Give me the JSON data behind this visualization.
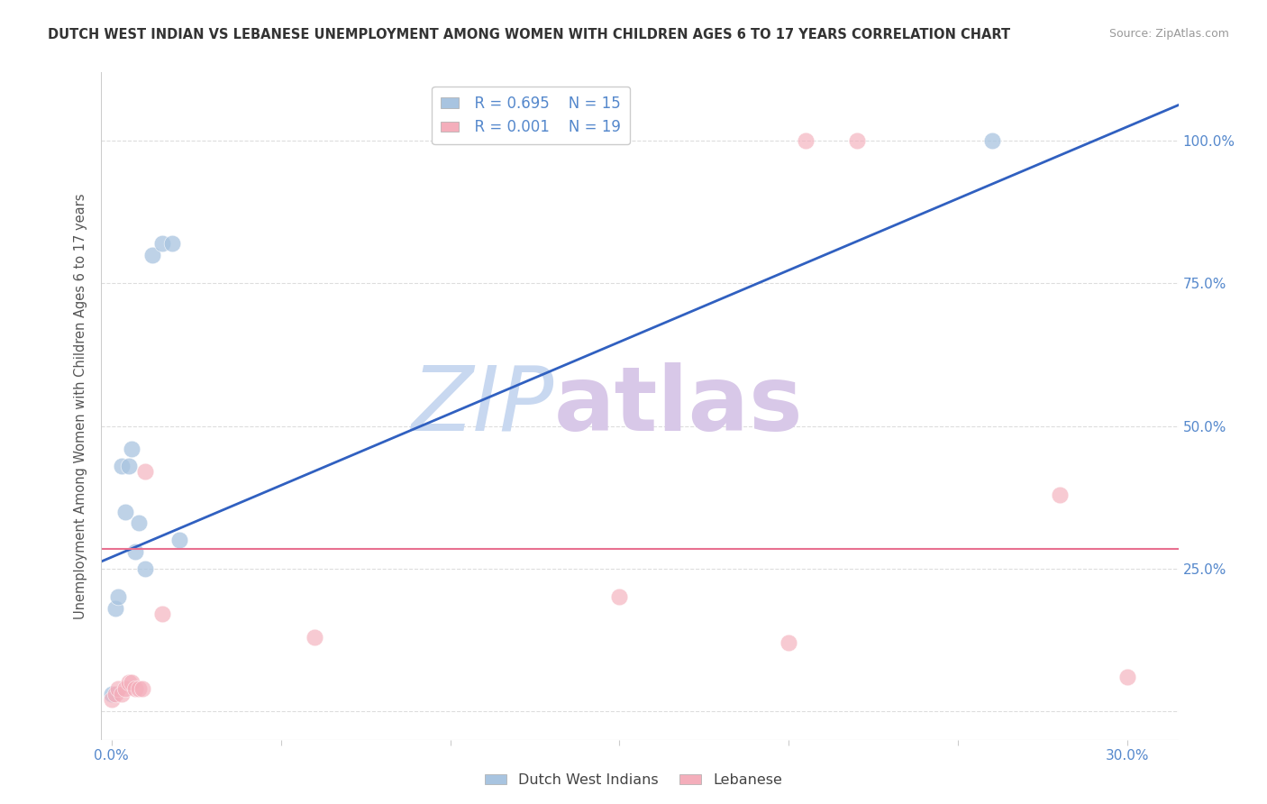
{
  "title": "DUTCH WEST INDIAN VS LEBANESE UNEMPLOYMENT AMONG WOMEN WITH CHILDREN AGES 6 TO 17 YEARS CORRELATION CHART",
  "source": "Source: ZipAtlas.com",
  "ylabel": "Unemployment Among Women with Children Ages 6 to 17 years",
  "yticks": [
    0.0,
    0.25,
    0.5,
    0.75,
    1.0
  ],
  "ytick_labels": [
    "",
    "25.0%",
    "50.0%",
    "75.0%",
    "100.0%"
  ],
  "xticks": [
    0.0,
    0.05,
    0.1,
    0.15,
    0.2,
    0.25,
    0.3
  ],
  "xtick_labels_visible": [
    "0.0%",
    "",
    "",
    "",
    "",
    "",
    "30.0%"
  ],
  "xlim": [
    -0.003,
    0.315
  ],
  "ylim": [
    -0.05,
    1.12
  ],
  "legend_r1": "R = 0.695",
  "legend_n1": "N = 15",
  "legend_r2": "R = 0.001",
  "legend_n2": "N = 19",
  "blue_color": "#A8C4E0",
  "pink_color": "#F4AEBB",
  "blue_line_color": "#3060C0",
  "pink_line_color": "#E87090",
  "dutch_west_indian_x": [
    0.0,
    0.001,
    0.002,
    0.003,
    0.004,
    0.005,
    0.006,
    0.007,
    0.008,
    0.01,
    0.012,
    0.015,
    0.018,
    0.02,
    0.26
  ],
  "dutch_west_indian_y": [
    0.03,
    0.18,
    0.2,
    0.43,
    0.35,
    0.43,
    0.46,
    0.28,
    0.33,
    0.25,
    0.8,
    0.82,
    0.82,
    0.3,
    1.0
  ],
  "lebanese_x": [
    0.0,
    0.001,
    0.002,
    0.003,
    0.004,
    0.005,
    0.006,
    0.007,
    0.008,
    0.009,
    0.01,
    0.015,
    0.06,
    0.15,
    0.2,
    0.205,
    0.22,
    0.28,
    0.3
  ],
  "lebanese_y": [
    0.02,
    0.03,
    0.04,
    0.03,
    0.04,
    0.05,
    0.05,
    0.04,
    0.04,
    0.04,
    0.42,
    0.17,
    0.13,
    0.2,
    0.12,
    1.0,
    1.0,
    0.38,
    0.06
  ],
  "blue_trendline": [
    0.0,
    0.31,
    3.6,
    0.27
  ],
  "pink_trendline_y": 0.285,
  "watermark_zip": "ZIP",
  "watermark_atlas": "atlas",
  "watermark_zip_color": "#C8D8F0",
  "watermark_atlas_color": "#D8C8E8",
  "background_color": "#FFFFFF",
  "tick_color": "#5588CC",
  "grid_color": "#DDDDDD",
  "axis_color": "#CCCCCC"
}
